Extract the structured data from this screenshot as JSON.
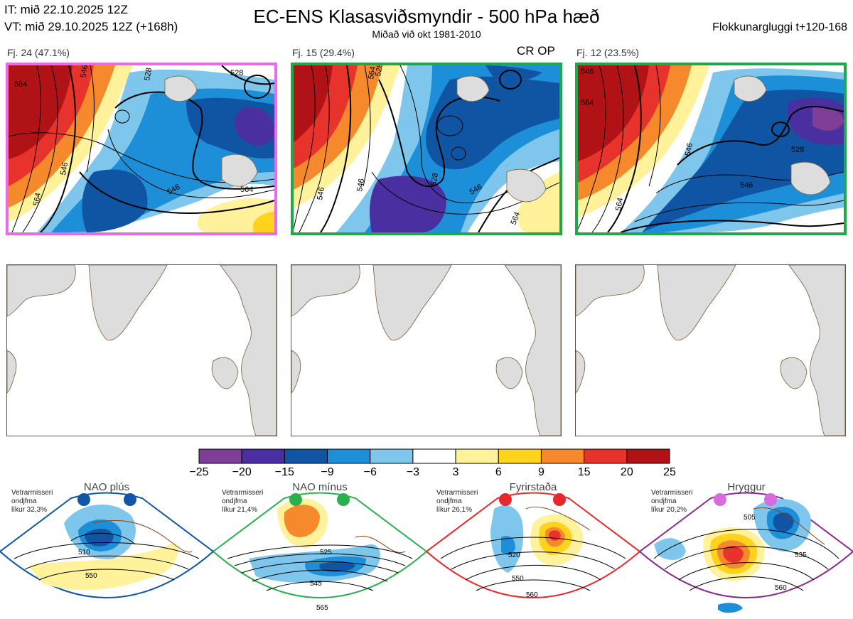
{
  "header": {
    "it_line": "IT: mið 22.10.2025 12Z",
    "vt_line": "VT: mið 29.10.2025 12Z  (+168h)",
    "title": "EC-ENS Klasasviðsmyndir - 500 hPa hæð",
    "subtitle": "Miðað við okt 1981-2010",
    "window": "Flokkunargluggi t+120-168"
  },
  "clusters": [
    {
      "caption": "Fj. 24 (47.1%)",
      "members": 24,
      "percent": 47.1,
      "frame_color": "#e86be8",
      "contours": [
        "564",
        "546",
        "528",
        "546",
        "528",
        "546",
        "564",
        "564"
      ]
    },
    {
      "caption": "Fj. 15 (29.4%)",
      "members": 15,
      "percent": 29.4,
      "frame_color": "#22a64a",
      "badge": "CR OP",
      "contours": [
        "564",
        "546",
        "528",
        "528",
        "546",
        "546",
        "564"
      ]
    },
    {
      "caption": "Fj. 12 (23.5%)",
      "members": 12,
      "percent": 23.5,
      "frame_color": "#22a64a",
      "contours": [
        "546",
        "564",
        "546",
        "528",
        "546",
        "564"
      ]
    }
  ],
  "colorbar": {
    "ticks": [
      "−25",
      "−20",
      "−15",
      "−9",
      "−6",
      "−3",
      "3",
      "6",
      "9",
      "15",
      "20",
      "25"
    ],
    "colors": [
      "#7f3f98",
      "#4a2fa0",
      "#1055a4",
      "#1d8fd8",
      "#7fc6ec",
      "#ffffff",
      "#fff29a",
      "#ffd21e",
      "#f6892b",
      "#e8332d",
      "#b01216"
    ]
  },
  "regimes": [
    {
      "name": "NAO plús",
      "note_lines": [
        "Vetrarmisseri",
        "ondjfma",
        "líkur 32,3%"
      ],
      "color": "#0f56a6",
      "contours": [
        "510",
        "550"
      ]
    },
    {
      "name": "NAO mínus",
      "note_lines": [
        "Vetrarmisseri",
        "ondjfma",
        "líkur 21,4%"
      ],
      "color": "#2ab04c",
      "contours": [
        "525",
        "545",
        "565"
      ]
    },
    {
      "name": "Fyrirstaða",
      "note_lines": [
        "Vetrarmisseri",
        "ondjfma",
        "líkur 26,1%"
      ],
      "color": "#e8262b",
      "contours": [
        "520",
        "550",
        "560"
      ]
    },
    {
      "name": "Hryggur",
      "note_lines": [
        "Vetrarmisseri",
        "ondjfma",
        "líkur 20,2%"
      ],
      "color": "#d96be0",
      "contours": [
        "505",
        "535",
        "560"
      ]
    }
  ],
  "icons": {
    "land": "land-mass-icon",
    "marker": "regime-dot-icon"
  }
}
